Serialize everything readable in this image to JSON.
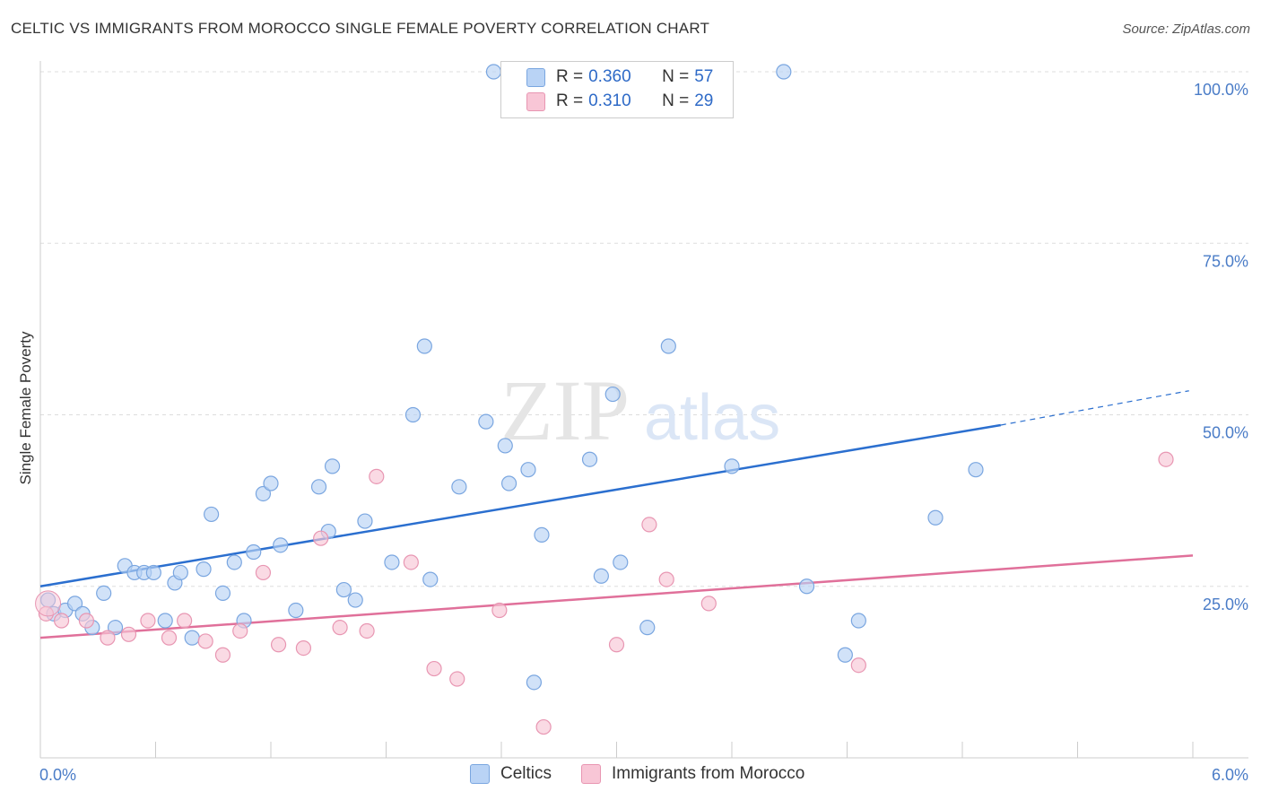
{
  "header": {
    "title": "CELTIC VS IMMIGRANTS FROM MOROCCO SINGLE FEMALE POVERTY CORRELATION CHART",
    "source": "Source: ZipAtlas.com"
  },
  "watermark": {
    "zip": "ZIP",
    "atlas": "atlas"
  },
  "legend": {
    "rows": [
      {
        "r_label": "R = ",
        "r_value": "0.360",
        "n_label": "N = ",
        "n_value": "57"
      },
      {
        "r_label": "R = ",
        "r_value": "0.310",
        "n_label": "N = ",
        "n_value": "29"
      }
    ]
  },
  "colors": {
    "celtic_fill": "#b9d3f5",
    "celtic_stroke": "#7aa6e0",
    "celtic_line": "#2b6fcf",
    "morocco_fill": "#f8c6d6",
    "morocco_stroke": "#e896b2",
    "morocco_line": "#e0709a",
    "tick_text": "#4a7cc7",
    "grid": "#dddddd"
  },
  "chart_data": {
    "type": "scatter",
    "title": "CELTIC VS IMMIGRANTS FROM MOROCCO SINGLE FEMALE POVERTY CORRELATION CHART",
    "xlabel": "",
    "ylabel": "Single Female Poverty",
    "xlim": [
      0,
      6
    ],
    "ylim": [
      0,
      100
    ],
    "x_tick_labels": [
      "0.0%",
      "6.0%"
    ],
    "y_tick_labels": [
      "25.0%",
      "50.0%",
      "75.0%",
      "100.0%"
    ],
    "y_ticks": [
      25,
      50,
      75,
      100
    ],
    "grid": true,
    "legend_position": "top-center",
    "series": [
      {
        "name": "Celtics",
        "r": 0.36,
        "n": 57,
        "trend": {
          "x0": 0,
          "y0": 25.0,
          "x1": 5.0,
          "y1": 48.5,
          "x_dash_end": 5.98,
          "y_dash_end": 53.5
        },
        "points": [
          [
            0.04,
            23.0
          ],
          [
            0.07,
            21.0
          ],
          [
            0.13,
            21.5
          ],
          [
            0.18,
            22.5
          ],
          [
            0.22,
            21.0
          ],
          [
            0.27,
            19.0
          ],
          [
            0.33,
            24.0
          ],
          [
            0.39,
            19.0
          ],
          [
            0.44,
            28.0
          ],
          [
            0.49,
            27.0
          ],
          [
            0.54,
            27.0
          ],
          [
            0.59,
            27.0
          ],
          [
            0.65,
            20.0
          ],
          [
            0.7,
            25.5
          ],
          [
            0.73,
            27.0
          ],
          [
            0.79,
            17.5
          ],
          [
            0.85,
            27.5
          ],
          [
            0.89,
            35.5
          ],
          [
            0.95,
            24.0
          ],
          [
            1.01,
            28.5
          ],
          [
            1.06,
            20.0
          ],
          [
            1.11,
            30.0
          ],
          [
            1.16,
            38.5
          ],
          [
            1.2,
            40.0
          ],
          [
            1.25,
            31.0
          ],
          [
            1.33,
            21.5
          ],
          [
            1.45,
            39.5
          ],
          [
            1.5,
            33.0
          ],
          [
            1.52,
            42.5
          ],
          [
            1.58,
            24.5
          ],
          [
            1.64,
            23.0
          ],
          [
            1.69,
            34.5
          ],
          [
            1.83,
            28.5
          ],
          [
            1.94,
            50.0
          ],
          [
            2.0,
            60.0
          ],
          [
            2.03,
            26.0
          ],
          [
            2.18,
            39.5
          ],
          [
            2.32,
            49.0
          ],
          [
            2.36,
            100.0
          ],
          [
            2.42,
            45.5
          ],
          [
            2.44,
            40.0
          ],
          [
            2.54,
            42.0
          ],
          [
            2.57,
            11.0
          ],
          [
            2.61,
            32.5
          ],
          [
            2.86,
            43.5
          ],
          [
            2.92,
            26.5
          ],
          [
            2.98,
            53.0
          ],
          [
            3.02,
            28.5
          ],
          [
            3.16,
            19.0
          ],
          [
            3.27,
            60.0
          ],
          [
            3.6,
            42.5
          ],
          [
            3.87,
            100.0
          ],
          [
            3.99,
            25.0
          ],
          [
            4.19,
            15.0
          ],
          [
            4.26,
            20.0
          ],
          [
            4.66,
            35.0
          ],
          [
            4.87,
            42.0
          ]
        ]
      },
      {
        "name": "Immigrants from Morocco",
        "r": 0.31,
        "n": 29,
        "trend": {
          "x0": 0,
          "y0": 17.5,
          "x1": 6.0,
          "y1": 29.5
        },
        "points": [
          [
            0.03,
            21.0
          ],
          [
            0.11,
            20.0
          ],
          [
            0.24,
            20.0
          ],
          [
            0.35,
            17.5
          ],
          [
            0.46,
            18.0
          ],
          [
            0.56,
            20.0
          ],
          [
            0.67,
            17.5
          ],
          [
            0.75,
            20.0
          ],
          [
            0.86,
            17.0
          ],
          [
            0.95,
            15.0
          ],
          [
            1.04,
            18.5
          ],
          [
            1.16,
            27.0
          ],
          [
            1.24,
            16.5
          ],
          [
            1.37,
            16.0
          ],
          [
            1.46,
            32.0
          ],
          [
            1.56,
            19.0
          ],
          [
            1.7,
            18.5
          ],
          [
            1.75,
            41.0
          ],
          [
            1.93,
            28.5
          ],
          [
            2.05,
            13.0
          ],
          [
            2.17,
            11.5
          ],
          [
            2.39,
            21.5
          ],
          [
            2.62,
            4.5
          ],
          [
            3.0,
            16.5
          ],
          [
            3.17,
            34.0
          ],
          [
            3.26,
            26.0
          ],
          [
            3.48,
            22.5
          ],
          [
            4.26,
            13.5
          ],
          [
            5.86,
            43.5
          ]
        ]
      }
    ]
  }
}
